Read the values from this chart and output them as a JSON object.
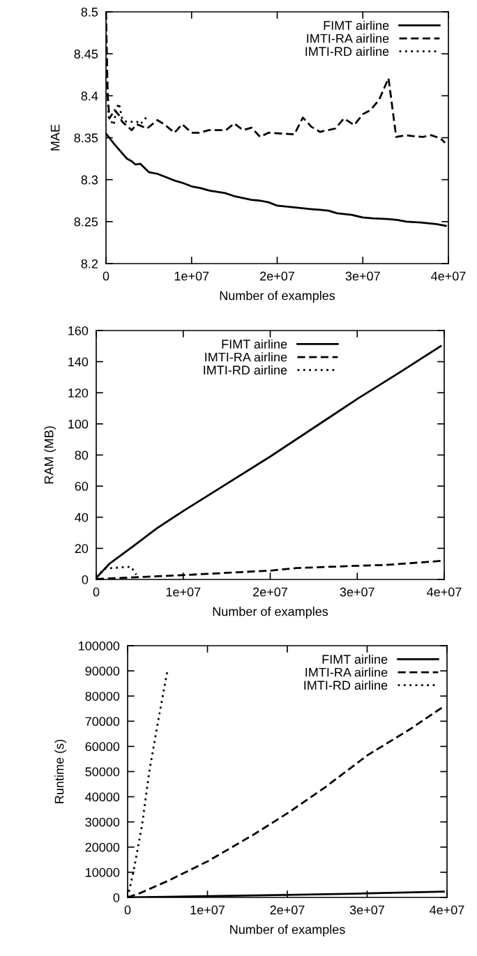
{
  "chart_data": [
    {
      "type": "line",
      "xlabel": "Number of examples",
      "ylabel": "MAE",
      "xlim": [
        0,
        40000000
      ],
      "ylim": [
        8.2,
        8.5
      ],
      "xticks": [
        0,
        {
          "value": 10000000,
          "label": "1e+07"
        },
        {
          "value": 20000000,
          "label": "2e+07"
        },
        {
          "value": 30000000,
          "label": "3e+07"
        },
        {
          "value": 40000000,
          "label": "4e+07"
        }
      ],
      "yticks": [
        8.2,
        8.25,
        8.3,
        8.35,
        8.4,
        8.45,
        8.5
      ],
      "legend": "top right",
      "grid": false,
      "series": [
        {
          "name": "FIMT airline",
          "color": "#000000",
          "line_style": "solid",
          "x": [
            0,
            1000000,
            2450000,
            3000000,
            3450000,
            4000000,
            5000000,
            6000000,
            7000000,
            8000000,
            9000000,
            10000000,
            11000000,
            12100000,
            13900000,
            15100000,
            17000000,
            18000000,
            19000000,
            20000000,
            22000000,
            23900000,
            25000000,
            26000000,
            27000000,
            28700000,
            30000000,
            31200000,
            32900000,
            34000000,
            35100000,
            36800000,
            38600000,
            39700000
          ],
          "values": [
            8.355,
            8.342,
            8.325,
            8.322,
            8.318,
            8.319,
            8.309,
            8.307,
            8.303,
            8.299,
            8.296,
            8.292,
            8.29,
            8.287,
            8.284,
            8.28,
            8.276,
            8.275,
            8.273,
            8.269,
            8.267,
            8.265,
            8.264,
            8.263,
            8.26,
            8.258,
            8.255,
            8.254,
            8.253,
            8.252,
            8.25,
            8.249,
            8.247,
            8.245
          ]
        },
        {
          "name": "IMTI-RA airline",
          "color": "#000000",
          "line_style": "dashed",
          "x": [
            0,
            200000,
            400000,
            1000000,
            1500000,
            1900000,
            3000000,
            3600000,
            4100000,
            4800000,
            6000000,
            6800000,
            8000000,
            8900000,
            10000000,
            10900000,
            12000000,
            14000000,
            15000000,
            16000000,
            17000000,
            18000000,
            19000000,
            22000000,
            23000000,
            24000000,
            25000000,
            26800000,
            27800000,
            29000000,
            30000000,
            30900000,
            31900000,
            33000000,
            33900000,
            35000000,
            35800000,
            37000000,
            38000000,
            39100000,
            39600000
          ],
          "values": [
            8.5,
            8.4,
            8.373,
            8.383,
            8.377,
            8.369,
            8.359,
            8.366,
            8.364,
            8.361,
            8.371,
            8.366,
            8.356,
            8.366,
            8.356,
            8.356,
            8.359,
            8.359,
            8.367,
            8.359,
            8.362,
            8.351,
            8.356,
            8.354,
            8.374,
            8.363,
            8.357,
            8.361,
            8.373,
            8.365,
            8.378,
            8.383,
            8.395,
            8.421,
            8.351,
            8.353,
            8.352,
            8.351,
            8.353,
            8.349,
            8.344
          ]
        },
        {
          "name": "IMTI-RD airline",
          "color": "#000000",
          "line_style": "dotted",
          "x": [
            0,
            100000,
            300000,
            900000,
            1200000,
            1500000,
            1900000,
            2400000,
            3600000,
            4000000,
            4700000
          ],
          "values": [
            8.5,
            8.43,
            8.375,
            8.365,
            8.384,
            8.391,
            8.372,
            8.369,
            8.369,
            8.366,
            8.374
          ]
        }
      ]
    },
    {
      "type": "line",
      "xlabel": "Number of examples",
      "ylabel": "RAM (MB)",
      "xlim": [
        0,
        40000000
      ],
      "ylim": [
        0,
        160
      ],
      "xticks": [
        0,
        {
          "value": 10000000,
          "label": "1e+07"
        },
        {
          "value": 20000000,
          "label": "2e+07"
        },
        {
          "value": 30000000,
          "label": "3e+07"
        },
        {
          "value": 40000000,
          "label": "4e+07"
        }
      ],
      "yticks": [
        0,
        20,
        40,
        60,
        80,
        100,
        120,
        140,
        160
      ],
      "legend": "top",
      "grid": false,
      "series": [
        {
          "name": "FIMT airline",
          "color": "#000000",
          "line_style": "solid",
          "x": [
            0,
            1500000,
            4300000,
            7000000,
            10000000,
            14000000,
            20000000,
            27300000,
            30000000,
            35000000,
            39600000
          ],
          "values": [
            1,
            10,
            21.6,
            33,
            44,
            58,
            79,
            106,
            116,
            133.5,
            150
          ]
        },
        {
          "name": "IMTI-RA airline",
          "color": "#000000",
          "line_style": "dashed",
          "x": [
            0,
            10000000,
            20000000,
            23000000,
            30000000,
            33300000,
            39600000
          ],
          "values": [
            0.3,
            2.8,
            5.7,
            7.3,
            8.8,
            9.3,
            11.9
          ]
        },
        {
          "name": "IMTI-RD airline",
          "color": "#000000",
          "line_style": "dotted",
          "x": [
            0,
            1000000,
            4000000,
            4600000
          ],
          "values": [
            1.5,
            7,
            8.2,
            3.1
          ]
        }
      ]
    },
    {
      "type": "line",
      "xlabel": "Number of examples",
      "ylabel": "Runtime (s)",
      "xlim": [
        0,
        40000000
      ],
      "ylim": [
        0,
        100000
      ],
      "xticks": [
        0,
        {
          "value": 10000000,
          "label": "1e+07"
        },
        {
          "value": 20000000,
          "label": "2e+07"
        },
        {
          "value": 30000000,
          "label": "3e+07"
        },
        {
          "value": 40000000,
          "label": "4e+07"
        }
      ],
      "yticks": [
        0,
        10000,
        20000,
        30000,
        40000,
        50000,
        60000,
        70000,
        80000,
        90000,
        100000
      ],
      "legend": "top right",
      "grid": false,
      "series": [
        {
          "name": "FIMT airline",
          "color": "#000000",
          "line_style": "solid",
          "x": [
            0,
            10000000,
            20000000,
            30000000,
            39600000
          ],
          "values": [
            0,
            500,
            1000,
            1600,
            2300
          ]
        },
        {
          "name": "IMTI-RA airline",
          "color": "#000000",
          "line_style": "dashed",
          "x": [
            0,
            1700000,
            5000000,
            10000000,
            15800000,
            20000000,
            24800000,
            30000000,
            35400000,
            39600000
          ],
          "values": [
            0,
            1900,
            6500,
            14300,
            25000,
            33400,
            43900,
            56400,
            66900,
            75900
          ]
        },
        {
          "name": "IMTI-RD airline",
          "color": "#000000",
          "line_style": "dotted",
          "x": [
            0,
            750000,
            1800000,
            2700000,
            3800000,
            5000000
          ],
          "values": [
            0,
            10500,
            28600,
            49700,
            69700,
            90300
          ]
        }
      ]
    }
  ]
}
